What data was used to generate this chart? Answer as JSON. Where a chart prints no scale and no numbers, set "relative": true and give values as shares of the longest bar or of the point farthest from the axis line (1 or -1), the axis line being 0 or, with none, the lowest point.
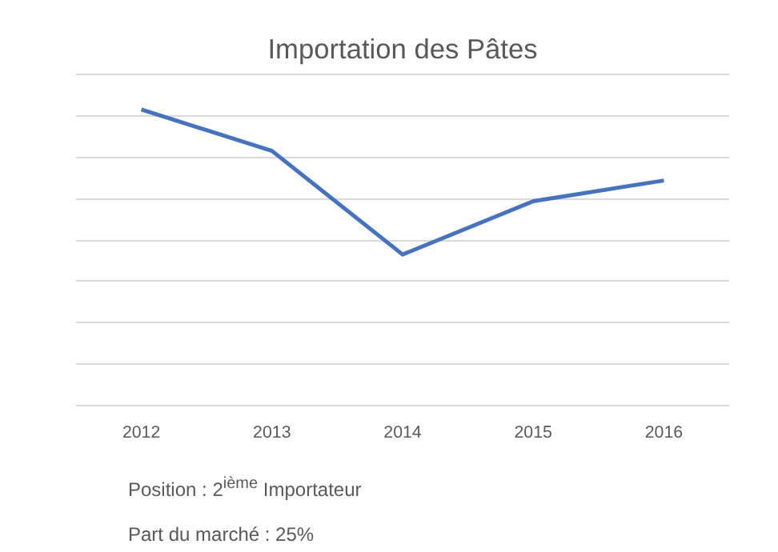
{
  "chart_data": {
    "type": "line",
    "title": "Importation des Pâtes",
    "categories": [
      "2012",
      "2013",
      "2014",
      "2015",
      "2016"
    ],
    "series": [
      {
        "color": "#4472c4",
        "values": [
          1,
          0.86,
          0.51,
          0.69,
          0.76
        ]
      }
    ],
    "relative": true,
    "grid": "y",
    "marker": "none",
    "line_style": "solid",
    "annotations": [
      "Position : 2$^{ième}$ Importateur",
      "Part du marché : 25%"
    ]
  }
}
